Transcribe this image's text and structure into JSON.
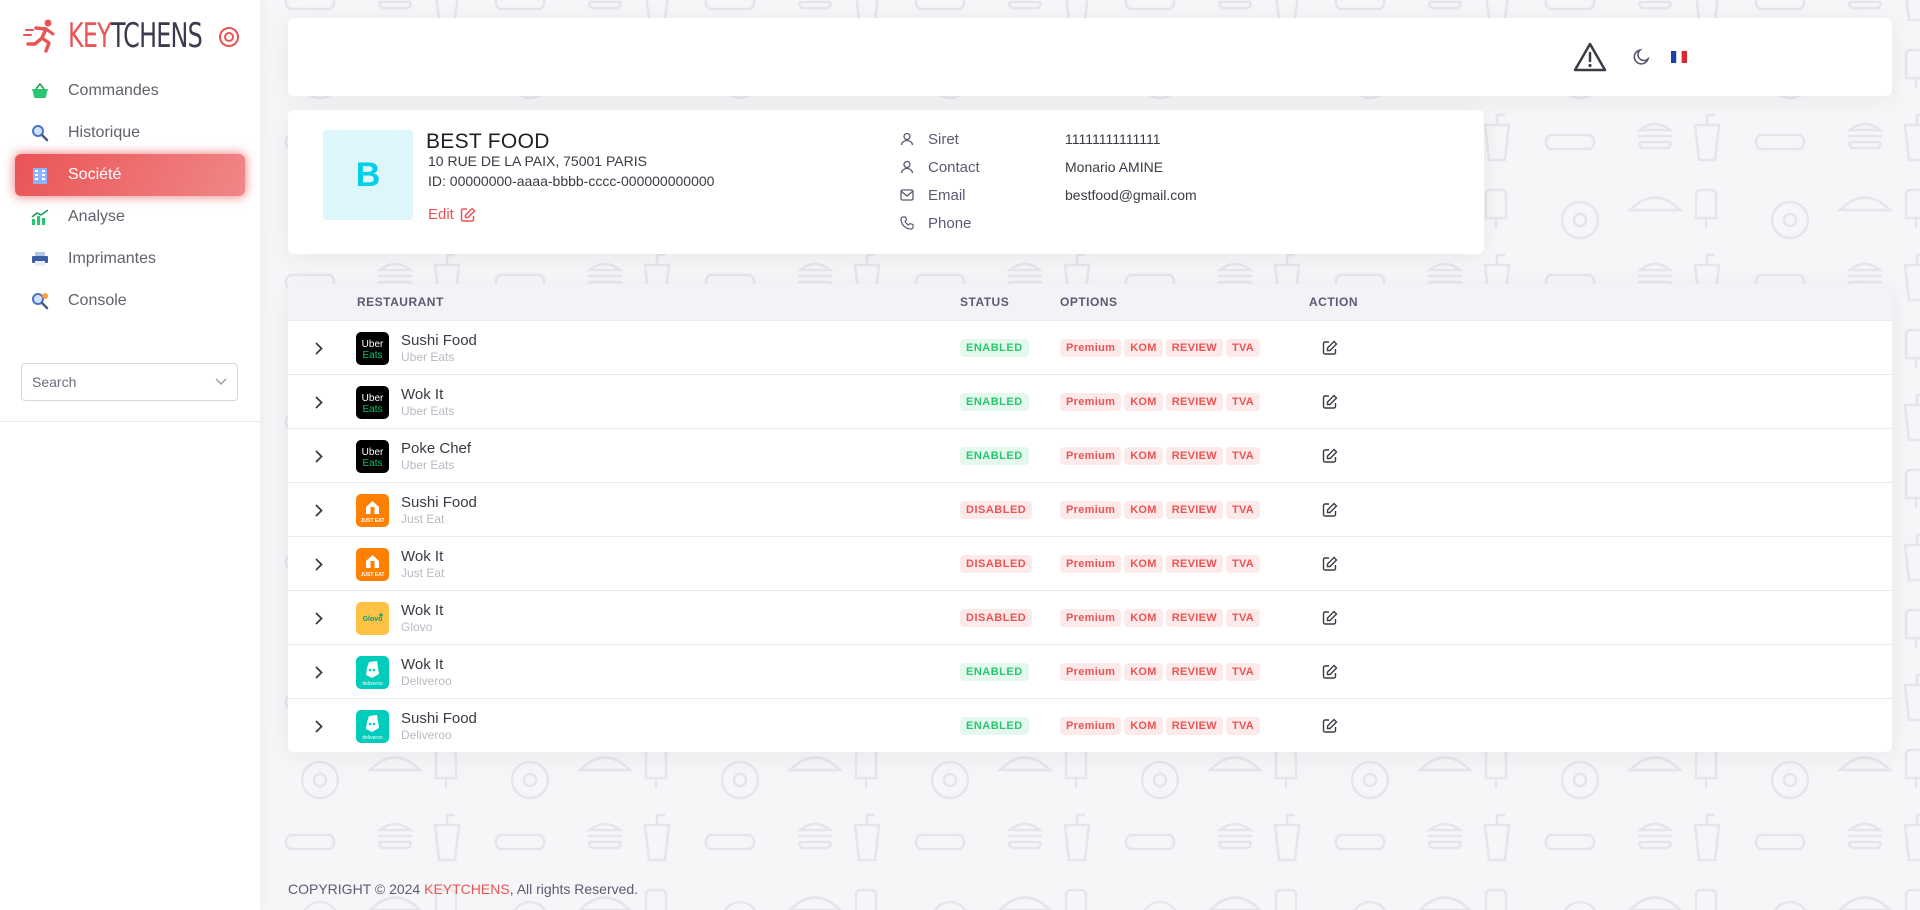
{
  "brand": {
    "name_part1": "KEY",
    "name_part2": "TCHENS"
  },
  "sidebar": {
    "items": [
      {
        "label": "Commandes",
        "icon": "basket-icon",
        "active": false
      },
      {
        "label": "Historique",
        "icon": "magnifier-icon",
        "active": false
      },
      {
        "label": "Société",
        "icon": "building-icon",
        "active": true
      },
      {
        "label": "Analyse",
        "icon": "chart-icon",
        "active": false
      },
      {
        "label": "Imprimantes",
        "icon": "printer-icon",
        "active": false
      },
      {
        "label": "Console",
        "icon": "console-icon",
        "active": false
      }
    ],
    "search_placeholder": "Search"
  },
  "header": {
    "icons": [
      "warning-icon",
      "moon-icon",
      "french-flag-icon"
    ]
  },
  "company": {
    "initial": "B",
    "name": "BEST FOOD",
    "address": "10 RUE DE LA PAIX, 75001 PARIS",
    "id_line": "ID: 00000000-aaaa-bbbb-cccc-000000000000",
    "edit_label": "Edit",
    "info": [
      {
        "label": "Siret",
        "value": "11111111111111",
        "icon": "user-icon"
      },
      {
        "label": "Contact",
        "value": "Monario AMINE",
        "icon": "user-icon"
      },
      {
        "label": "Email",
        "value": "bestfood@gmail.com",
        "icon": "mail-icon"
      },
      {
        "label": "Phone",
        "value": "",
        "icon": "phone-icon"
      }
    ]
  },
  "table": {
    "headers": {
      "restaurant": "RESTAURANT",
      "status": "STATUS",
      "options": "OPTIONS",
      "action": "ACTION"
    },
    "option_labels": [
      "Premium",
      "KOM",
      "REVIEW",
      "TVA"
    ],
    "rows": [
      {
        "name": "Sushi Food",
        "platform": "Uber Eats",
        "logo": "ubereats",
        "status": "ENABLED"
      },
      {
        "name": "Wok It",
        "platform": "Uber Eats",
        "logo": "ubereats",
        "status": "ENABLED"
      },
      {
        "name": "Poke Chef",
        "platform": "Uber Eats",
        "logo": "ubereats",
        "status": "ENABLED"
      },
      {
        "name": "Sushi Food",
        "platform": "Just Eat",
        "logo": "justeat",
        "status": "DISABLED"
      },
      {
        "name": "Wok It",
        "platform": "Just Eat",
        "logo": "justeat",
        "status": "DISABLED"
      },
      {
        "name": "Wok It",
        "platform": "Glovo",
        "logo": "glovo",
        "status": "DISABLED"
      },
      {
        "name": "Wok It",
        "platform": "Deliveroo",
        "logo": "deliveroo",
        "status": "ENABLED"
      },
      {
        "name": "Sushi Food",
        "platform": "Deliveroo",
        "logo": "deliveroo",
        "status": "ENABLED"
      }
    ]
  },
  "footer": {
    "prefix": "COPYRIGHT © 2024 ",
    "brand": "KEYTCHENS",
    "suffix": ", All rights Reserved."
  },
  "colors": {
    "accent": "#ea5455",
    "success": "#28c76f",
    "avatar_bg": "#ddf6fb",
    "avatar_fg": "#00cfe8"
  }
}
